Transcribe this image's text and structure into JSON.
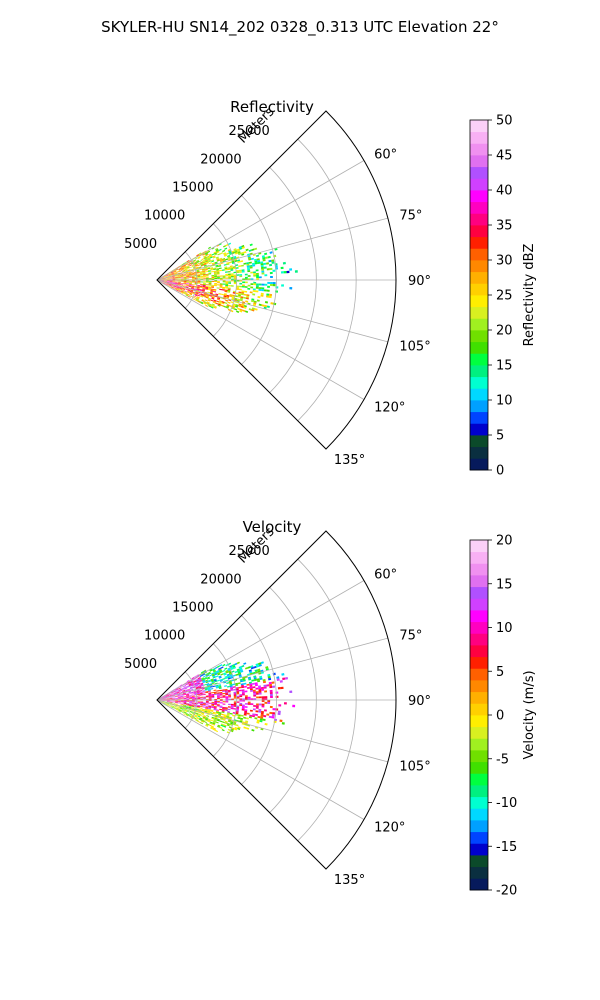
{
  "figure": {
    "suptitle": "SKYLER-HU  SN14_202  0328_0.313 UTC Elevation 22°"
  },
  "chart_data": [
    {
      "type": "heatmap",
      "projection": "polar-sector",
      "title": "Reflectivity",
      "radial_label": "Meters",
      "radial_ticks": [
        5000,
        10000,
        15000,
        20000,
        25000
      ],
      "radial_tick_labels": [
        "5000",
        "10000",
        "15000",
        "20000",
        "25000"
      ],
      "rmax": 30000,
      "theta_range_deg": [
        45,
        135
      ],
      "theta_ticks_deg": [
        60,
        75,
        90,
        105,
        120,
        135
      ],
      "theta_tick_labels": [
        "60°",
        "75°",
        "90°",
        "105°",
        "120°",
        "135°"
      ],
      "grid": true,
      "echo_extent": {
        "theta_deg": [
          58,
          118
        ],
        "range_m": [
          0,
          17000
        ]
      },
      "colorbar": {
        "label": "Reflectivity dBZ",
        "range": [
          0,
          50
        ],
        "ticks": [
          0,
          5,
          10,
          15,
          20,
          25,
          30,
          35,
          40,
          45,
          50
        ],
        "tick_labels": [
          "0",
          "5",
          "10",
          "15",
          "20",
          "25",
          "30",
          "35",
          "40",
          "45",
          "50"
        ],
        "colors": [
          "#061a5c",
          "#0a2f40",
          "#0b4a2a",
          "#0000cc",
          "#0044ff",
          "#00a0ff",
          "#00d8ff",
          "#00ffd0",
          "#00f080",
          "#00ff40",
          "#40e000",
          "#70e000",
          "#a0f020",
          "#d8f020",
          "#ffee00",
          "#ffd000",
          "#ffb000",
          "#ff8800",
          "#ff6000",
          "#ff2000",
          "#ff0040",
          "#ff0080",
          "#ff00c0",
          "#ff00ff",
          "#d040ff",
          "#b050ff",
          "#e070f0",
          "#f090f0",
          "#f8b0f4",
          "#fbd0f8"
        ]
      }
    },
    {
      "type": "heatmap",
      "projection": "polar-sector",
      "title": "Velocity",
      "radial_label": "Meters",
      "radial_ticks": [
        5000,
        10000,
        15000,
        20000,
        25000
      ],
      "radial_tick_labels": [
        "5000",
        "10000",
        "15000",
        "20000",
        "25000"
      ],
      "rmax": 30000,
      "theta_range_deg": [
        45,
        135
      ],
      "theta_ticks_deg": [
        60,
        75,
        90,
        105,
        120,
        135
      ],
      "theta_tick_labels": [
        "60°",
        "75°",
        "90°",
        "105°",
        "120°",
        "135°"
      ],
      "grid": true,
      "echo_extent": {
        "theta_deg": [
          58,
          118
        ],
        "range_m": [
          0,
          17000
        ]
      },
      "colorbar": {
        "label": "Velocity (m/s)",
        "range": [
          -20,
          20
        ],
        "ticks": [
          -20,
          -15,
          -10,
          -5,
          0,
          5,
          10,
          15,
          20
        ],
        "tick_labels": [
          "-20",
          "-15",
          "-10",
          "-5",
          "0",
          "5",
          "10",
          "15",
          "20"
        ],
        "colors": [
          "#061a5c",
          "#0a2f40",
          "#0b4a2a",
          "#0000cc",
          "#0044ff",
          "#00a0ff",
          "#00d8ff",
          "#00ffd0",
          "#00f080",
          "#00ff40",
          "#40e000",
          "#70e000",
          "#a0f020",
          "#d8f020",
          "#ffee00",
          "#ffd000",
          "#ffb000",
          "#ff8800",
          "#ff6000",
          "#ff2000",
          "#ff0040",
          "#ff0080",
          "#ff00c0",
          "#ff00ff",
          "#d040ff",
          "#b050ff",
          "#e070f0",
          "#f090f0",
          "#f8b0f4",
          "#fbd0f8"
        ]
      }
    }
  ]
}
